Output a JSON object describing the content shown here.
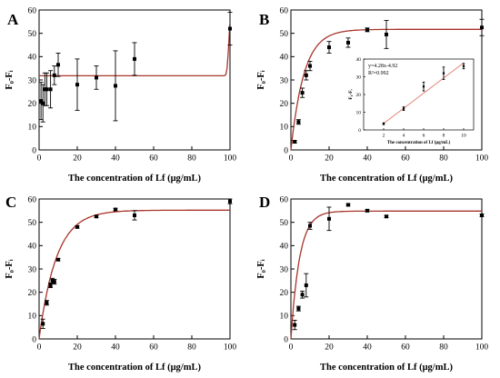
{
  "figure": {
    "background": "#ffffff"
  },
  "style": {
    "fit_color": "#a8342a",
    "point_color": "#000000",
    "inset_line_color": "#e07a6a"
  },
  "chart_data": [
    {
      "panel": "A",
      "type": "scatter",
      "xlabel": "The concentration of Lf (μg/mL)",
      "ylabel": "F₀-Fᵢ",
      "xlim": [
        0,
        100
      ],
      "ylim": [
        0,
        60
      ],
      "xticks": [
        0,
        20,
        40,
        60,
        80,
        100
      ],
      "yticks": [
        0,
        10,
        20,
        30,
        40,
        50,
        60
      ],
      "points": [
        {
          "x": 1,
          "y": 21,
          "err": 8
        },
        {
          "x": 2,
          "y": 20,
          "err": 8
        },
        {
          "x": 3,
          "y": 26,
          "err": 7
        },
        {
          "x": 4,
          "y": 26,
          "err": 7
        },
        {
          "x": 6,
          "y": 26,
          "err": 8
        },
        {
          "x": 8,
          "y": 32,
          "err": 4
        },
        {
          "x": 10,
          "y": 36.5,
          "err": 5
        },
        {
          "x": 20,
          "y": 28,
          "err": 11
        },
        {
          "x": 30,
          "y": 31,
          "err": 5
        },
        {
          "x": 40,
          "y": 27.5,
          "err": 15
        },
        {
          "x": 50,
          "y": 39,
          "err": 7
        },
        {
          "x": 100,
          "y": 52,
          "err": 7
        }
      ],
      "fit": [
        [
          0,
          31.8
        ],
        [
          97,
          31.8
        ],
        [
          97.8,
          32.3
        ],
        [
          98.5,
          35
        ],
        [
          99.1,
          42
        ],
        [
          99.6,
          50
        ],
        [
          100,
          54
        ]
      ]
    },
    {
      "panel": "B",
      "type": "scatter",
      "xlabel": "The concentration of Lf (μg/mL)",
      "ylabel": "F₀-Fᵢ",
      "xlim": [
        0,
        100
      ],
      "ylim": [
        0,
        60
      ],
      "xticks": [
        0,
        20,
        40,
        60,
        80,
        100
      ],
      "yticks": [
        0,
        10,
        20,
        30,
        40,
        50,
        60
      ],
      "points": [
        {
          "x": 2,
          "y": 3.5,
          "err": 0.5
        },
        {
          "x": 4,
          "y": 12,
          "err": 1
        },
        {
          "x": 6,
          "y": 24.5,
          "err": 2
        },
        {
          "x": 8,
          "y": 32,
          "err": 2
        },
        {
          "x": 10,
          "y": 36,
          "err": 2
        },
        {
          "x": 20,
          "y": 44,
          "err": 2.5
        },
        {
          "x": 30,
          "y": 46,
          "err": 2
        },
        {
          "x": 40,
          "y": 51.5,
          "err": 0.8
        },
        {
          "x": 50,
          "y": 49.5,
          "err": 6
        },
        {
          "x": 100,
          "y": 52.5,
          "err": 3.5
        }
      ],
      "fit_model": {
        "ymax": 51.7,
        "k": 0.145
      },
      "inset": {
        "xlabel": "The concentration of Lf (μg/mL)",
        "ylabel": "F₀-Fᵢ",
        "equation": "y=4.28x-4.92",
        "r2": "R²=0.992",
        "xlim": [
          0,
          11
        ],
        "ylim": [
          0,
          40
        ],
        "xticks": [
          2,
          4,
          6,
          8,
          10
        ],
        "yticks": [
          0,
          10,
          20,
          30,
          40
        ],
        "points": [
          {
            "x": 2,
            "y": 3.5,
            "err": 0.5
          },
          {
            "x": 4,
            "y": 12,
            "err": 1
          },
          {
            "x": 6,
            "y": 24.5,
            "err": 2.5
          },
          {
            "x": 8,
            "y": 32,
            "err": 3.5
          },
          {
            "x": 10,
            "y": 36,
            "err": 1.5
          }
        ],
        "fit_line": [
          [
            2,
            3.64
          ],
          [
            10,
            37.88
          ]
        ]
      }
    },
    {
      "panel": "C",
      "type": "scatter",
      "xlabel": "The concentration of Lf (μg/mL)",
      "ylabel": "F₀-Fᵢ",
      "xlim": [
        0,
        100
      ],
      "ylim": [
        0,
        60
      ],
      "xticks": [
        0,
        20,
        40,
        60,
        80,
        100
      ],
      "yticks": [
        0,
        10,
        20,
        30,
        40,
        50,
        60
      ],
      "points": [
        {
          "x": 2,
          "y": 6.5,
          "err": 2
        },
        {
          "x": 4,
          "y": 15.5,
          "err": 1
        },
        {
          "x": 6,
          "y": 23,
          "err": 1
        },
        {
          "x": 7,
          "y": 25,
          "err": 1
        },
        {
          "x": 8,
          "y": 24.5,
          "err": 1
        },
        {
          "x": 10,
          "y": 34,
          "err": 0.5
        },
        {
          "x": 20,
          "y": 48,
          "err": 0.5
        },
        {
          "x": 30,
          "y": 52.5,
          "err": 0.5
        },
        {
          "x": 40,
          "y": 55.5,
          "err": 0.5
        },
        {
          "x": 50,
          "y": 53,
          "err": 2
        },
        {
          "x": 100,
          "y": 59,
          "err": 1
        }
      ],
      "fit_model": {
        "ymax": 55.2,
        "k": 0.11
      }
    },
    {
      "panel": "D",
      "type": "scatter",
      "xlabel": "The concentration of Lf (μg/mL)",
      "ylabel": "F₀-Fᵢ",
      "xlim": [
        0,
        100
      ],
      "ylim": [
        0,
        60
      ],
      "xticks": [
        0,
        20,
        40,
        60,
        80,
        100
      ],
      "yticks": [
        0,
        10,
        20,
        30,
        40,
        50,
        60
      ],
      "points": [
        {
          "x": 2,
          "y": 6,
          "err": 2
        },
        {
          "x": 4,
          "y": 13,
          "err": 1
        },
        {
          "x": 6,
          "y": 19,
          "err": 1.5
        },
        {
          "x": 8,
          "y": 23,
          "err": 5
        },
        {
          "x": 10,
          "y": 48.5,
          "err": 1.5
        },
        {
          "x": 20,
          "y": 51.5,
          "err": 5
        },
        {
          "x": 30,
          "y": 57.5,
          "err": 0.5
        },
        {
          "x": 40,
          "y": 55,
          "err": 0.5
        },
        {
          "x": 50,
          "y": 52.5,
          "err": 0.5
        },
        {
          "x": 100,
          "y": 53,
          "err": 0.5
        }
      ],
      "fit_model": {
        "ymax": 54.8,
        "k": 0.22
      }
    }
  ]
}
